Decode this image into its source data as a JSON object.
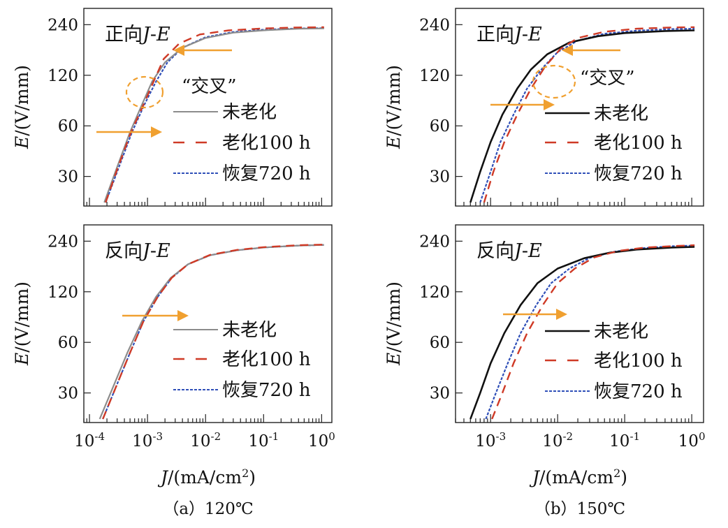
{
  "colors": {
    "unaged_120": "#8c8c8c",
    "unaged_150": "#111111",
    "aged": "#cf3a26",
    "recovered": "#2f4fb8",
    "arrow": "#f0a030",
    "ellipse": "#f0a030"
  },
  "axes": {
    "x_label_prefix": "J",
    "x_label_unit": "/(mA/cm",
    "x_label_sup": "2",
    "x_label_close": ")",
    "y_label_prefix": "E",
    "y_label_unit": "/(V/mm)",
    "x_scale": "log",
    "y_scale": "log"
  },
  "legend": {
    "unaged": "未老化",
    "aged": "老化100 h",
    "recovered": "恢复720 h",
    "placement": "lower-right"
  },
  "annotations": {
    "crossing": "“交叉”"
  },
  "panel_titles": {
    "forward_prefix": "正向",
    "reverse_prefix": "反向",
    "suffix_j": "J",
    "suffix_dash": "-",
    "suffix_e": "E"
  },
  "captions": {
    "a": "（a）120℃",
    "b": "（b）150℃"
  },
  "chart_data": [
    {
      "type": "line",
      "panel": "a-forward",
      "title": "正向J-E",
      "caption": "（a）120℃",
      "xlabel": "J/(mA/cm2)",
      "ylabel": "E/(V/mm)",
      "x_scale": "log",
      "y_scale": "log",
      "xlim": [
        8e-05,
        1.5
      ],
      "ylim": [
        20,
        300
      ],
      "x_ticks": [
        "10-4",
        "10-3",
        "10-2",
        "10-1",
        "100"
      ],
      "y_ticks": [
        30,
        60,
        120,
        240
      ],
      "annotation": "“交叉”",
      "series": [
        {
          "name": "未老化",
          "x": [
            0.00018,
            0.00028,
            0.0005,
            0.0008,
            0.0012,
            0.002,
            0.004,
            0.01,
            0.03,
            0.1,
            0.4,
            1.1
          ],
          "y": [
            21,
            32,
            55,
            80,
            110,
            143,
            175,
            200,
            215,
            222,
            227,
            228
          ]
        },
        {
          "name": "老化100 h",
          "x": [
            0.00019,
            0.0003,
            0.00052,
            0.00085,
            0.0013,
            0.0019,
            0.0035,
            0.008,
            0.025,
            0.1,
            0.4,
            1.1
          ],
          "y": [
            21,
            33,
            55,
            80,
            112,
            150,
            185,
            210,
            222,
            228,
            231,
            232
          ]
        },
        {
          "name": "恢复720 h",
          "x": [
            0.00019,
            0.0003,
            0.00054,
            0.00088,
            0.0014,
            0.0022,
            0.004,
            0.01,
            0.03,
            0.1,
            0.4,
            1.1
          ],
          "y": [
            21,
            32,
            55,
            80,
            110,
            143,
            175,
            202,
            217,
            224,
            228,
            229
          ]
        }
      ]
    },
    {
      "type": "line",
      "panel": "b-forward",
      "title": "正向J-E",
      "caption": "（b）150℃",
      "xlabel": "J/(mA/cm2)",
      "ylabel": "E/(V/mm)",
      "x_scale": "log",
      "y_scale": "log",
      "xlim": [
        0.0003,
        1.5
      ],
      "ylim": [
        20,
        300
      ],
      "x_ticks": [
        "10-3",
        "10-2",
        "10-1",
        "100"
      ],
      "y_ticks": [
        30,
        60,
        120,
        240
      ],
      "annotation": "“交叉”",
      "series": [
        {
          "name": "未老化",
          "x": [
            0.0005,
            0.0007,
            0.001,
            0.0015,
            0.0025,
            0.004,
            0.007,
            0.015,
            0.04,
            0.1,
            0.4,
            1.1
          ],
          "y": [
            21,
            32,
            48,
            70,
            100,
            130,
            160,
            188,
            205,
            214,
            220,
            222
          ]
        },
        {
          "name": "老化100 h",
          "x": [
            0.0008,
            0.0011,
            0.0016,
            0.0025,
            0.004,
            0.0065,
            0.011,
            0.02,
            0.05,
            0.15,
            0.5,
            1.1
          ],
          "y": [
            21,
            32,
            48,
            70,
            100,
            135,
            172,
            200,
            218,
            227,
            231,
            232
          ]
        },
        {
          "name": "恢复720 h",
          "x": [
            0.0007,
            0.001,
            0.0014,
            0.0022,
            0.0035,
            0.006,
            0.01,
            0.02,
            0.05,
            0.15,
            0.5,
            1.1
          ],
          "y": [
            21,
            32,
            48,
            70,
            100,
            133,
            165,
            193,
            212,
            221,
            226,
            227
          ]
        }
      ]
    },
    {
      "type": "line",
      "panel": "a-reverse",
      "title": "反向J-E",
      "caption": "（a）120℃",
      "xlabel": "J/(mA/cm2)",
      "ylabel": "E/(V/mm)",
      "x_scale": "log",
      "y_scale": "log",
      "xlim": [
        8e-05,
        1.5
      ],
      "ylim": [
        20,
        300
      ],
      "x_ticks": [
        "10-4",
        "10-3",
        "10-2",
        "10-1",
        "100"
      ],
      "y_ticks": [
        30,
        60,
        120,
        240
      ],
      "series": [
        {
          "name": "未老化",
          "x": [
            0.00015,
            0.00025,
            0.00045,
            0.0008,
            0.0014,
            0.0025,
            0.005,
            0.012,
            0.035,
            0.1,
            0.4,
            1.1
          ],
          "y": [
            21,
            32,
            52,
            80,
            112,
            145,
            175,
            198,
            212,
            220,
            226,
            228
          ]
        },
        {
          "name": "老化100 h",
          "x": [
            0.00017,
            0.00028,
            0.0005,
            0.00085,
            0.0015,
            0.0026,
            0.005,
            0.012,
            0.035,
            0.1,
            0.4,
            1.1
          ],
          "y": [
            21,
            32,
            52,
            80,
            112,
            145,
            175,
            199,
            213,
            221,
            227,
            229
          ]
        },
        {
          "name": "恢复720 h",
          "x": [
            0.00017,
            0.00028,
            0.0005,
            0.00085,
            0.0015,
            0.0026,
            0.005,
            0.012,
            0.035,
            0.1,
            0.4,
            1.1
          ],
          "y": [
            21,
            32,
            52,
            80,
            112,
            145,
            175,
            198,
            212,
            220,
            226,
            228
          ]
        }
      ]
    },
    {
      "type": "line",
      "panel": "b-reverse",
      "title": "反向J-E",
      "caption": "（b）150℃",
      "xlabel": "J/(mA/cm2)",
      "ylabel": "E/(V/mm)",
      "x_scale": "log",
      "y_scale": "log",
      "xlim": [
        0.0003,
        1.5
      ],
      "ylim": [
        20,
        300
      ],
      "x_ticks": [
        "10-3",
        "10-2",
        "10-1",
        "100"
      ],
      "y_ticks": [
        30,
        60,
        120,
        240
      ],
      "series": [
        {
          "name": "未老化",
          "x": [
            0.0005,
            0.0007,
            0.001,
            0.0016,
            0.0028,
            0.005,
            0.01,
            0.025,
            0.06,
            0.15,
            0.5,
            1.1
          ],
          "y": [
            21,
            30,
            45,
            68,
            100,
            135,
            165,
            190,
            205,
            214,
            220,
            222
          ]
        },
        {
          "name": "老化100 h",
          "x": [
            0.00105,
            0.0015,
            0.0022,
            0.0035,
            0.006,
            0.01,
            0.018,
            0.035,
            0.08,
            0.2,
            0.6,
            1.1
          ],
          "y": [
            21,
            30,
            45,
            68,
            100,
            135,
            165,
            192,
            210,
            220,
            225,
            227
          ]
        },
        {
          "name": "恢复720 h",
          "x": [
            0.00085,
            0.0012,
            0.0018,
            0.0028,
            0.0048,
            0.008,
            0.015,
            0.03,
            0.07,
            0.18,
            0.5,
            1.1
          ],
          "y": [
            21,
            30,
            45,
            68,
            100,
            135,
            165,
            191,
            208,
            218,
            224,
            226
          ]
        }
      ]
    }
  ]
}
